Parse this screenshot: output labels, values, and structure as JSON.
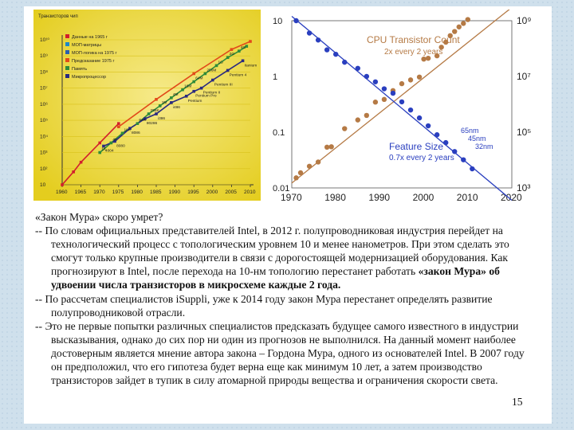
{
  "slide": {
    "page_number": "15",
    "paragraphs": [
      {
        "type": "title",
        "text": "«Закон Мура» скоро умрет?"
      },
      {
        "type": "item",
        "runs": [
          {
            "text": "-- По словам официальных представителей Intel, в 2012 г. полупроводниковая индустрия перейдет на технологический процесс с топологическим уровнем 10 и менее нанометров. При этом сделать это смогут только крупные производители в связи с дорогостоящей модернизацией оборудования. Как прогнозируют в Intel, после перехода на 10-нм топологию перестанет работать ",
            "bold": false
          },
          {
            "text": "«закон Мура» об удвоении числа транзисторов в микросхеме каждые 2 года.",
            "bold": true
          }
        ]
      },
      {
        "type": "item",
        "runs": [
          {
            "text": "-- По рассчетам специалистов iSuppli, уже к 2014 году закон Мура перестанет определять развитие полупроводниковой отрасли.",
            "bold": false
          }
        ]
      },
      {
        "type": "item",
        "runs": [
          {
            "text": "-- Это не первые попытки различных специалистов предсказать будущее самого известного в индустрии высказывания, однако до сих пор ни один из прогнозов не выполнился. На данный момент наиболее достоверным является мнение автора закона – Гордона Мура, одного из основателей Intel. В 2007 году он предполoжил, что его гипотеза будет верна еще как минимум 10 лет, а затем производство транзисторов зайдет в тупик в силу атомарной природы вещества и ограничения скорости света.",
            "bold": false
          }
        ]
      }
    ]
  },
  "chart_data": [
    {
      "type": "line",
      "title": "Транзисторов чип",
      "xlabel": "",
      "ylabel": "",
      "x_ticks": [
        "1960",
        "1965",
        "1970",
        "1975",
        "1980",
        "1985",
        "1990",
        "1995",
        "2000",
        "2005",
        "2010"
      ],
      "y_ticks": [
        "10",
        "10²",
        "10³",
        "10⁴",
        "10⁵",
        "10⁶",
        "10⁷",
        "10⁸",
        "10⁹",
        "10¹⁰"
      ],
      "xlim": [
        1960,
        2010
      ],
      "ylim_log10": [
        1,
        10
      ],
      "legend": {
        "placement": "top-left",
        "entries": [
          {
            "label": "Данные на 1965 г",
            "color": "#d21f2c",
            "marker": "square"
          },
          {
            "label": "МОП-матрицы",
            "color": "#1e88c8",
            "marker": "circle"
          },
          {
            "label": "МОП-логика на 1975 г",
            "color": "#2860b0",
            "marker": "diamond"
          },
          {
            "label": "Предсказание 1975 г",
            "color": "#e24a1a",
            "marker": "square"
          },
          {
            "label": "Память",
            "color": "#2e8b3a",
            "marker": "square"
          },
          {
            "label": "Микропроцессор",
            "color": "#2a2a80",
            "marker": "triangle"
          }
        ]
      },
      "series": [
        {
          "name": "Данные на 1965 г",
          "color": "#d21f2c",
          "x": [
            1960,
            1963,
            1965,
            1970,
            1975
          ],
          "y_log10": [
            1,
            1.8,
            2.4,
            3.6,
            4.8
          ]
        },
        {
          "name": "Память",
          "color": "#2e8b3a",
          "x": [
            1970,
            1973,
            1976,
            1980,
            1983,
            1986,
            1989,
            1992,
            1995,
            1998,
            2001,
            2004,
            2007,
            2009
          ],
          "y_log10": [
            3.0,
            3.6,
            4.2,
            4.8,
            5.4,
            5.9,
            6.4,
            6.9,
            7.4,
            7.9,
            8.4,
            8.9,
            9.3,
            9.6
          ]
        },
        {
          "name": "Микропроцессор",
          "color": "#2a2a80",
          "x": [
            1971,
            1974,
            1978,
            1982,
            1985,
            1989,
            1993,
            1995,
            1997,
            2000,
            2004,
            2008
          ],
          "y_log10": [
            3.4,
            3.7,
            4.5,
            5.1,
            5.4,
            6.1,
            6.5,
            6.8,
            7.0,
            7.5,
            8.1,
            8.7
          ]
        },
        {
          "name": "Предсказание 1975 г",
          "color": "#e24a1a",
          "x": [
            1975,
            1985,
            1995,
            2005,
            2010
          ],
          "y_log10": [
            4.6,
            6.3,
            7.9,
            9.4,
            9.9
          ]
        }
      ],
      "point_labels": [
        "1K",
        "4K",
        "16K",
        "64K",
        "256K",
        "1M",
        "4M",
        "16M",
        "64M",
        "256M",
        "1G",
        "2G",
        "4G",
        "4004",
        "8080",
        "8086",
        "80286",
        "i386",
        "i486",
        "Pentium",
        "Pentium Pro",
        "Pentium II",
        "Pentium III",
        "Pentium 4",
        "Itanium"
      ]
    },
    {
      "type": "scatter",
      "title": "CPU Transistor Count",
      "subtitle": "2x every 2 years",
      "xlabel": "",
      "ylabel": "",
      "x_ticks": [
        "1970",
        "1980",
        "1990",
        "2000",
        "2010",
        "2020"
      ],
      "xlim": [
        1970,
        2020
      ],
      "left_axis": {
        "label": "",
        "ticks": [
          "10",
          "1",
          "0.1",
          "0.01"
        ],
        "lim": [
          0.01,
          10
        ],
        "scale": "log"
      },
      "right_axis": {
        "label": "",
        "ticks": [
          "10⁹",
          "10⁷",
          "10⁵",
          "10³"
        ],
        "lim": [
          1000,
          1000000000
        ],
        "scale": "log"
      },
      "grid": false,
      "series": [
        {
          "name": "CPU Transistor Count",
          "color": "#b57a45",
          "axis": "right",
          "x": [
            1971,
            1972,
            1974,
            1976,
            1978,
            1979,
            1982,
            1985,
            1987,
            1989,
            1991,
            1993,
            1995,
            1997,
            1999,
            2000,
            2001,
            2003,
            2004,
            2005,
            2006,
            2007,
            2008,
            2009,
            2010
          ],
          "y": [
            2300,
            3500,
            6000,
            8500,
            29000,
            30000,
            134000,
            275000,
            400000,
            1200000,
            1500000,
            3100000,
            5500000,
            7500000,
            9500000,
            42000000,
            45000000,
            55000000,
            112000000,
            170000000,
            290000000,
            410000000,
            600000000,
            800000000,
            1100000000
          ],
          "trend_y": [
            1500,
            3000000000
          ]
        },
        {
          "name": "Feature Size",
          "color": "#2a3fbf",
          "axis": "left",
          "x": [
            1971,
            1974,
            1976,
            1978,
            1980,
            1982,
            1985,
            1987,
            1989,
            1991,
            1993,
            1995,
            1997,
            1999,
            2001,
            2003,
            2005,
            2007,
            2009,
            2011
          ],
          "y": [
            10,
            6,
            4.5,
            3,
            2.5,
            1.8,
            1.4,
            1.0,
            0.8,
            0.6,
            0.5,
            0.35,
            0.25,
            0.18,
            0.13,
            0.09,
            0.065,
            0.045,
            0.032,
            0.022
          ],
          "trend_y": [
            12,
            0.006
          ]
        }
      ],
      "labels": {
        "feature_title": "Feature Size",
        "feature_sub": "0.7x every 2 years",
        "nm": [
          "65nm",
          "45nm",
          "32nm"
        ]
      }
    }
  ]
}
